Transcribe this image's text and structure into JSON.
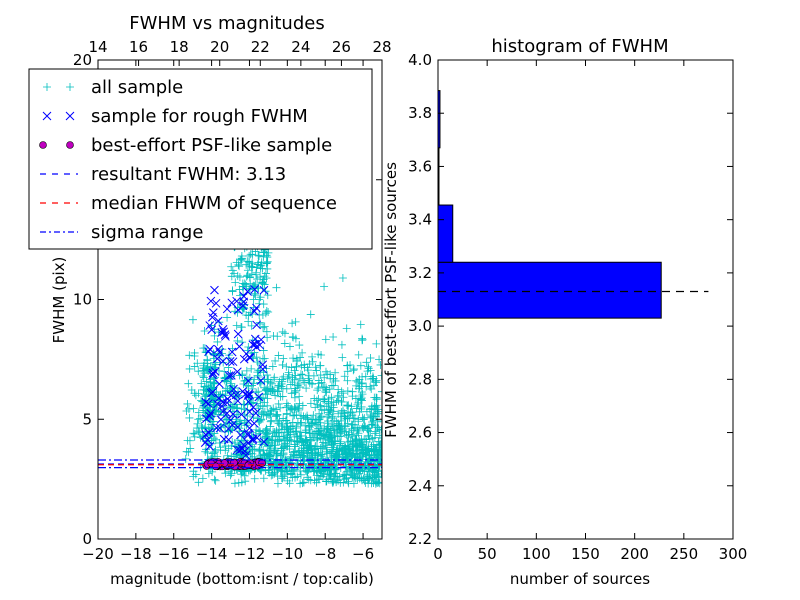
{
  "chart_data": [
    {
      "type": "scatter",
      "title": "FWHM vs magnitudes",
      "xlabel": "magnitude (bottom:isnt / top:calib)",
      "ylabel": "FWHM (pix)",
      "xlim": [
        -20,
        -5
      ],
      "ylim": [
        0,
        20
      ],
      "xticks": [
        "−20",
        "−18",
        "−16",
        "−14",
        "−12",
        "−10",
        "−8",
        "−6"
      ],
      "xtick_values": [
        -20,
        -18,
        -16,
        -14,
        -12,
        -10,
        -8,
        -6
      ],
      "yticks": [
        "0",
        "5",
        "10",
        "15",
        "20"
      ],
      "ytick_values": [
        0,
        5,
        10,
        15,
        20
      ],
      "top_axis": {
        "ticks": [
          "14",
          "16",
          "18",
          "20",
          "22",
          "24",
          "26",
          "28"
        ],
        "tick_values": [
          14,
          16,
          18,
          20,
          22,
          24,
          26,
          28
        ],
        "range": [
          14,
          28
        ]
      },
      "legend_position": "upper-left",
      "legend": [
        {
          "label": "all sample",
          "marker": "plus",
          "color": "#00bfbf"
        },
        {
          "label": "sample for rough FWHM",
          "marker": "x",
          "color": "#0000ff"
        },
        {
          "label": "best-effort PSF-like sample",
          "marker": "circle",
          "color": "#bf00bf"
        },
        {
          "label": "resultant FWHM: 3.13",
          "marker": "dash",
          "color": "#0000ff"
        },
        {
          "label": "median FHWM of sequence",
          "marker": "dash",
          "color": "#ff0000"
        },
        {
          "label": "sigma range",
          "marker": "dashdot",
          "color": "#0000ff"
        }
      ],
      "series": [
        {
          "name": "all sample",
          "color": "#00bfbf",
          "clusters": [
            {
              "x_range": [
                -15.5,
                -5
              ],
              "y_center": 5.5,
              "y_spread": 3.5,
              "count": 1300
            },
            {
              "x_range": [
                -13,
                -11
              ],
              "y_center": 12,
              "y_spread": 4,
              "count": 260
            },
            {
              "x_range": [
                -14.5,
                -13.8
              ],
              "y_center": 6,
              "y_spread": 2.2,
              "count": 120
            }
          ]
        },
        {
          "name": "sample for rough FWHM",
          "color": "#0000ff",
          "x_range": [
            -14.4,
            -11.2
          ],
          "y_range": [
            3.5,
            10.5
          ],
          "count": 120
        },
        {
          "name": "best-effort PSF-like sample",
          "color": "#bf00bf",
          "x_range": [
            -14.3,
            -11.3
          ],
          "y_value": 3.13,
          "y_spread": 0.1,
          "count": 70
        }
      ],
      "lines": [
        {
          "name": "resultant FWHM: 3.13",
          "y": 3.13,
          "style": "dashed",
          "color": "#0000ff"
        },
        {
          "name": "median FHWM of sequence",
          "y": 3.1,
          "style": "dashed",
          "color": "#ff0000"
        },
        {
          "name": "sigma range",
          "y": 3.3,
          "style": "dashdot",
          "color": "#0000ff"
        },
        {
          "name": "sigma range",
          "y": 2.98,
          "style": "dashdot",
          "color": "#0000ff"
        }
      ]
    },
    {
      "type": "bar",
      "orientation": "horizontal",
      "title": "histogram of FWHM",
      "xlabel": "number of sources",
      "ylabel": "FWHM of best-effort PSF-like sources",
      "xlim": [
        0,
        300
      ],
      "ylim": [
        2.2,
        4.0
      ],
      "xticks": [
        "0",
        "50",
        "100",
        "150",
        "200",
        "250",
        "300"
      ],
      "xtick_values": [
        0,
        50,
        100,
        150,
        200,
        250,
        300
      ],
      "yticks": [
        "2.2",
        "2.4",
        "2.6",
        "2.8",
        "3.0",
        "3.2",
        "3.4",
        "3.6",
        "3.8",
        "4.0"
      ],
      "ytick_values": [
        2.2,
        2.4,
        2.6,
        2.8,
        3.0,
        3.2,
        3.4,
        3.6,
        3.8,
        4.0
      ],
      "bar_color": "#0000ff",
      "bins": [
        {
          "y0": 3.03,
          "y1": 3.24,
          "count": 227
        },
        {
          "y0": 3.24,
          "y1": 3.455,
          "count": 15
        },
        {
          "y0": 3.455,
          "y1": 3.67,
          "count": 1
        },
        {
          "y0": 3.67,
          "y1": 3.885,
          "count": 2
        }
      ],
      "reference_line": {
        "y": 3.13,
        "style": "dashed",
        "color": "#000000",
        "x_range": [
          0,
          275
        ]
      }
    }
  ]
}
